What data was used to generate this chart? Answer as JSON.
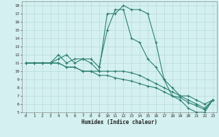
{
  "xlabel": "Humidex (Indice chaleur)",
  "bg_color": "#d4f0f0",
  "line_color": "#2a7d6e",
  "grid_color": "#b8dada",
  "xlim": [
    -0.5,
    23.5
  ],
  "ylim": [
    5,
    18.5
  ],
  "xticks": [
    0,
    1,
    2,
    3,
    4,
    5,
    6,
    7,
    8,
    9,
    10,
    11,
    12,
    13,
    14,
    15,
    16,
    17,
    18,
    19,
    20,
    21,
    22,
    23
  ],
  "yticks": [
    5,
    6,
    7,
    8,
    9,
    10,
    11,
    12,
    13,
    14,
    15,
    16,
    17,
    18
  ],
  "series": [
    {
      "x": [
        0,
        1,
        2,
        3,
        4,
        5,
        6,
        7,
        8,
        9,
        10,
        11,
        12,
        13,
        14,
        15,
        16,
        17,
        18,
        19,
        20,
        21,
        22,
        23
      ],
      "y": [
        11,
        11,
        11,
        11,
        12,
        11,
        11.5,
        11.5,
        11,
        10,
        17,
        17,
        18,
        17.5,
        17.5,
        17,
        13.5,
        9,
        7,
        6.5,
        5.5,
        5,
        5,
        6.5
      ]
    },
    {
      "x": [
        0,
        1,
        2,
        3,
        4,
        5,
        6,
        7,
        8,
        9,
        10,
        11,
        12,
        13,
        14,
        15,
        16,
        17,
        18,
        19,
        20,
        21,
        22,
        23
      ],
      "y": [
        11,
        11,
        11,
        11,
        11.5,
        12,
        11,
        11.5,
        11.5,
        10.5,
        15,
        17.5,
        17.5,
        14,
        13.5,
        11.5,
        10.5,
        9,
        8,
        7,
        7,
        6.5,
        6,
        6.5
      ]
    },
    {
      "x": [
        0,
        1,
        2,
        3,
        4,
        5,
        6,
        7,
        8,
        9,
        10,
        11,
        12,
        13,
        14,
        15,
        16,
        17,
        18,
        19,
        20,
        21,
        22,
        23
      ],
      "y": [
        11,
        11,
        11,
        11,
        11,
        10.5,
        10.5,
        10,
        10,
        10,
        10,
        10,
        10,
        9.8,
        9.5,
        9,
        8.5,
        8,
        7.5,
        7,
        6.5,
        6,
        5.5,
        6.5
      ]
    },
    {
      "x": [
        0,
        1,
        2,
        3,
        4,
        5,
        6,
        7,
        8,
        9,
        10,
        11,
        12,
        13,
        14,
        15,
        16,
        17,
        18,
        19,
        20,
        21,
        22,
        23
      ],
      "y": [
        11,
        11,
        11,
        11,
        11,
        10.5,
        10.5,
        10,
        10,
        9.5,
        9.5,
        9.2,
        9,
        8.8,
        8.5,
        8.2,
        8,
        7.5,
        7,
        6.8,
        6.2,
        5.8,
        5.3,
        6.5
      ]
    }
  ]
}
